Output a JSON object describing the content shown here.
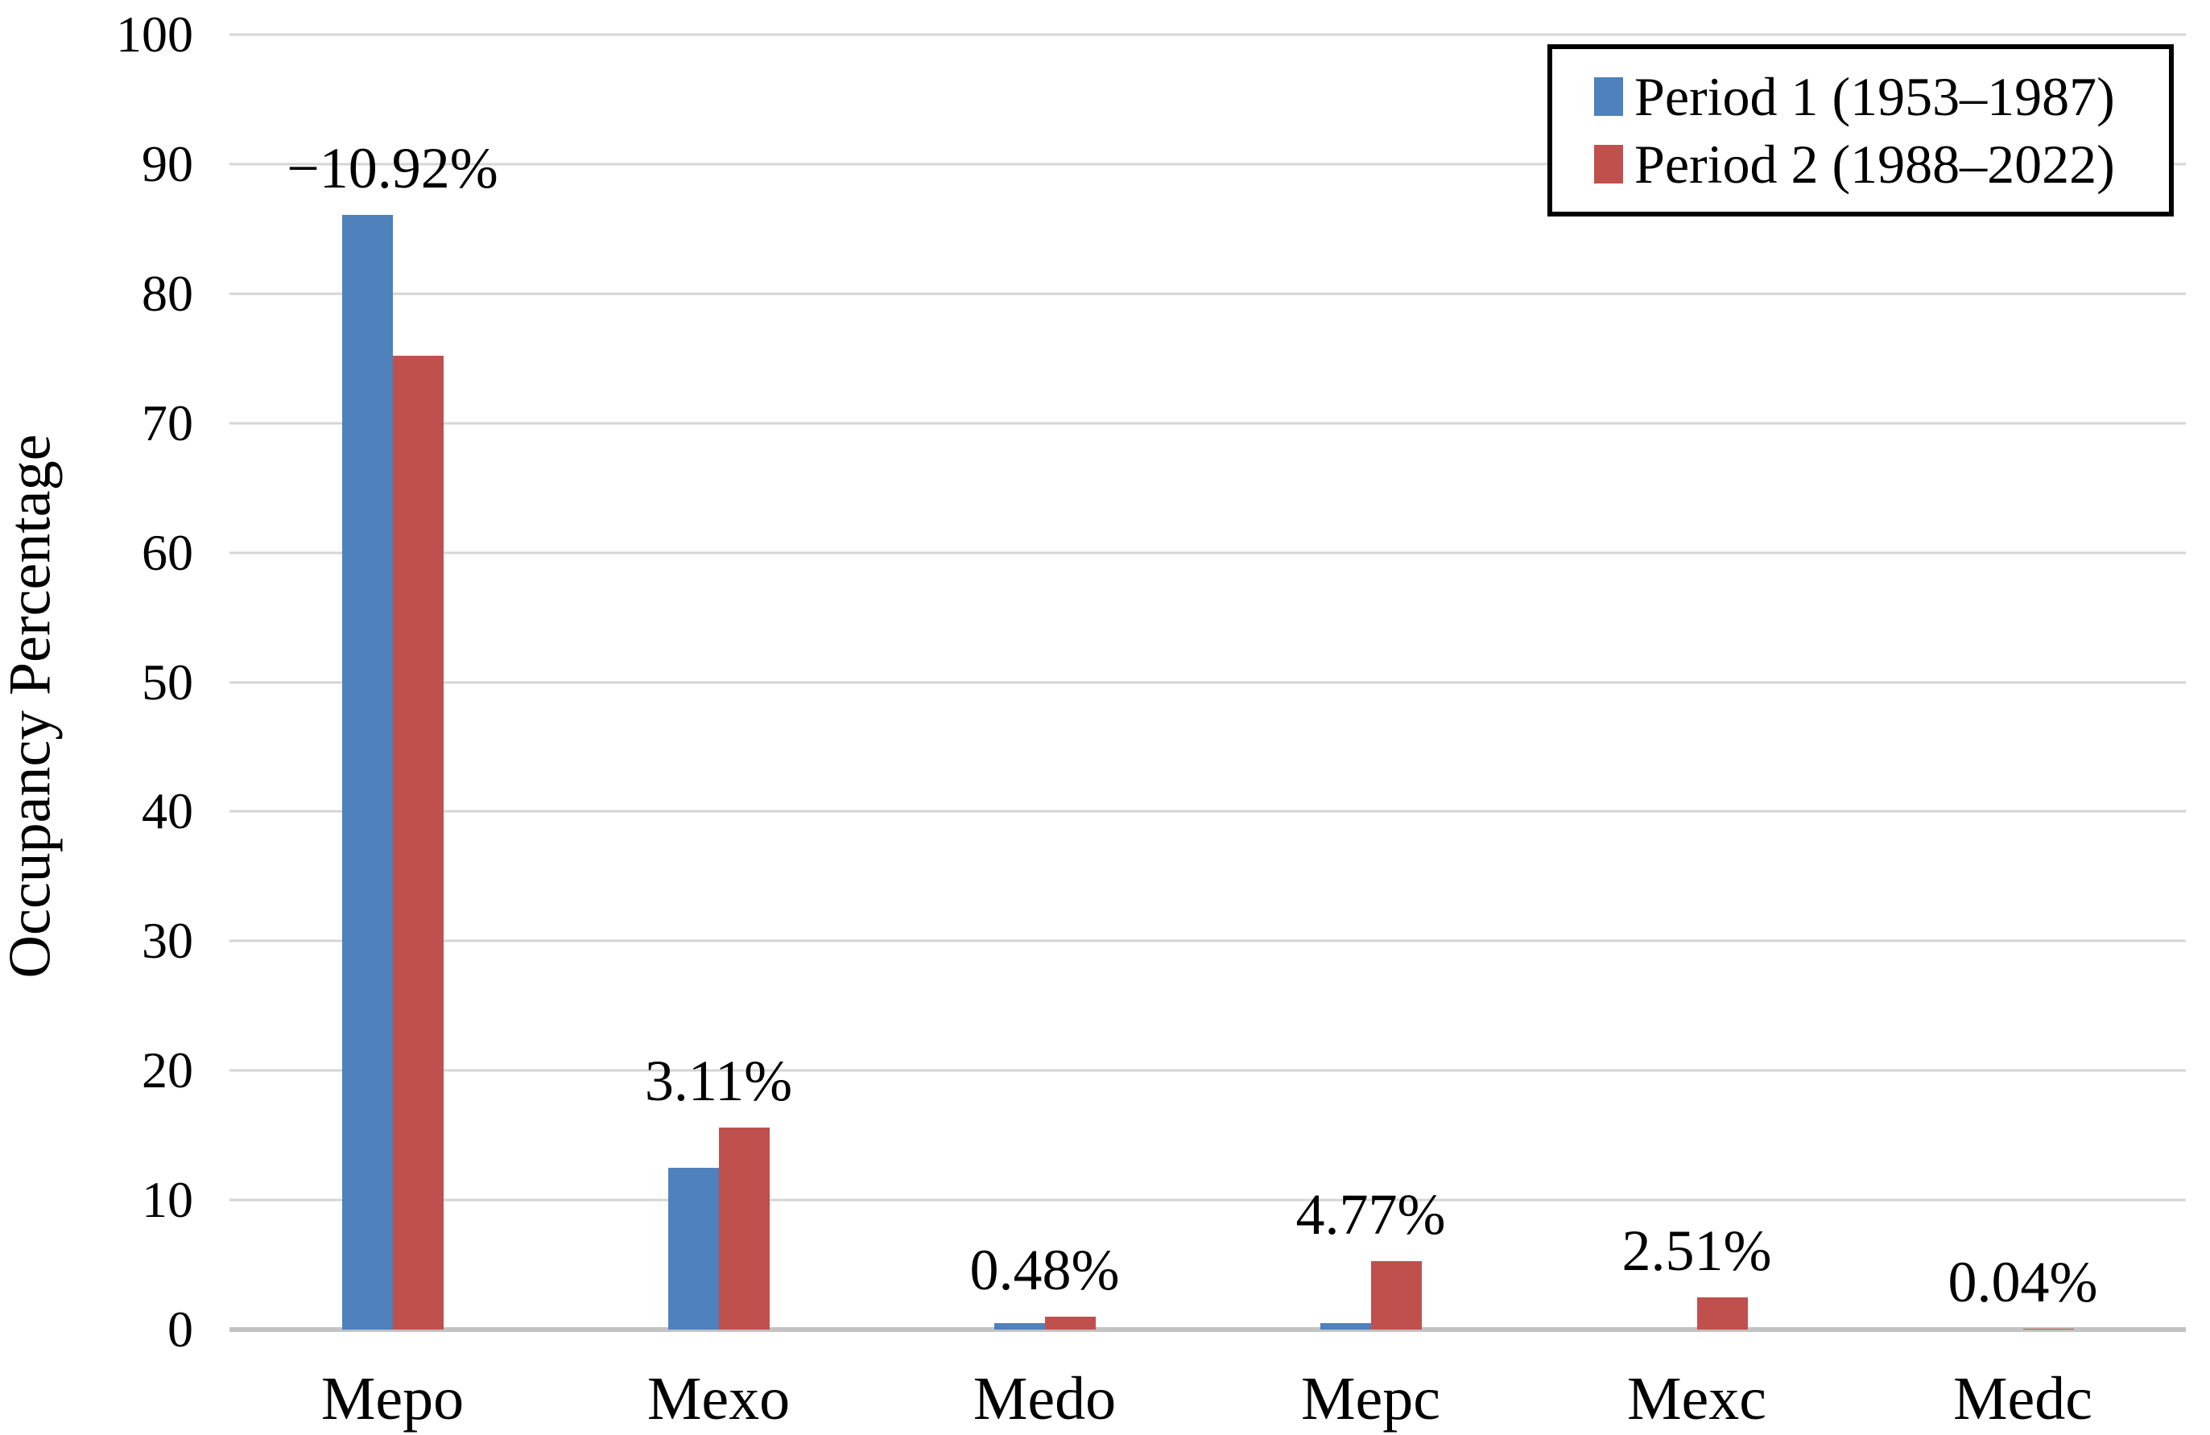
{
  "chart_data": {
    "type": "bar",
    "title": "",
    "ylabel": "Occupancy Percentage",
    "xlabel": "",
    "categories": [
      "Mepo",
      "Mexo",
      "Medo",
      "Mepc",
      "Mexc",
      "Medc"
    ],
    "series": [
      {
        "name": "Period 1 (1953–1987)",
        "color": "#4F81BD",
        "values": [
          86.1,
          12.5,
          0.52,
          0.5,
          0.0,
          0.0
        ]
      },
      {
        "name": "Period 2 (1988–2022)",
        "color": "#C0504D",
        "values": [
          75.2,
          15.61,
          1.0,
          5.27,
          2.51,
          0.04
        ]
      }
    ],
    "data_labels": [
      "−10.92%",
      "3.11%",
      "0.48%",
      "4.77%",
      "2.51%",
      "0.04%"
    ],
    "ylim": [
      0,
      100
    ],
    "ytick_labels": [
      "0",
      "10",
      "20",
      "30",
      "40",
      "50",
      "60",
      "70",
      "80",
      "90",
      "100"
    ],
    "grid": true,
    "legend_position": "top-right"
  },
  "colors": {
    "background": "#FFFFFF",
    "gridline": "#D5D5D5",
    "zero_line": "#C3C3C3",
    "text": "#000000",
    "legend_border": "#000000",
    "series1": "#4F81BD",
    "series2": "#C0504D"
  }
}
